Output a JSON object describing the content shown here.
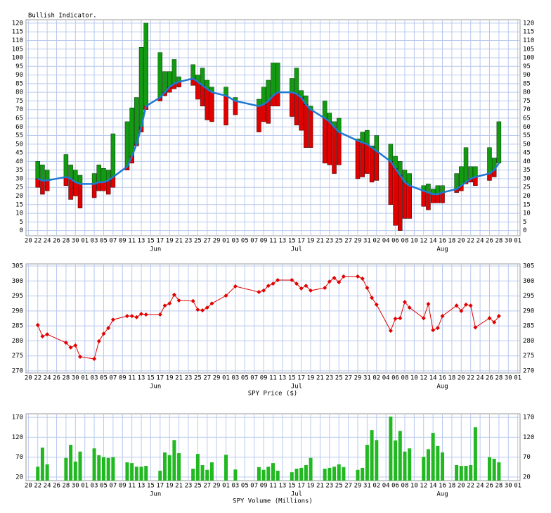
{
  "chart_data": [
    {
      "type": "range-bar",
      "title": "Bullish Indicator.",
      "x": [
        2,
        3,
        4,
        8,
        9,
        10,
        11,
        14,
        15,
        16,
        17,
        18,
        21,
        22,
        23,
        24,
        25,
        28,
        29,
        30,
        31,
        32,
        35,
        36,
        37,
        38,
        39,
        42,
        44,
        49,
        50,
        51,
        52,
        53,
        56,
        57,
        58,
        59,
        60,
        63,
        64,
        65,
        66,
        70,
        71,
        72,
        73,
        74,
        77,
        78,
        79,
        80,
        81,
        84,
        85,
        86,
        87,
        88,
        91,
        92,
        93,
        94,
        95,
        98,
        99,
        100
      ],
      "low": [
        25,
        21,
        23,
        26,
        18,
        20,
        13,
        19,
        23,
        23,
        21,
        25,
        35,
        39,
        49,
        57,
        70,
        75,
        78,
        80,
        82,
        83,
        84,
        76,
        72,
        64,
        63,
        61,
        67,
        57,
        63,
        62,
        72,
        72,
        66,
        61,
        58,
        48,
        48,
        39,
        38,
        33,
        38,
        30,
        31,
        33,
        28,
        29,
        15,
        3,
        0,
        7,
        7,
        14,
        12,
        16,
        16,
        16,
        22,
        23,
        27,
        28,
        26,
        29,
        31,
        39
      ],
      "split": [
        30,
        29,
        29,
        31,
        30,
        28,
        27,
        27,
        28,
        28,
        29,
        31,
        37,
        43,
        50,
        60,
        72,
        77,
        80,
        83,
        85,
        86,
        88,
        86,
        84,
        82,
        80,
        78,
        75,
        72,
        73,
        75,
        78,
        80,
        80,
        79,
        77,
        73,
        70,
        65,
        63,
        60,
        57,
        52,
        51,
        50,
        48,
        46,
        40,
        36,
        32,
        28,
        26,
        23,
        22,
        21,
        21,
        22,
        24,
        26,
        28,
        30,
        31,
        33,
        35,
        39
      ],
      "high": [
        40,
        38,
        35,
        44,
        38,
        35,
        32,
        33,
        38,
        36,
        35,
        56,
        63,
        71,
        77,
        106,
        120,
        103,
        92,
        92,
        99,
        89,
        96,
        90,
        94,
        87,
        83,
        83,
        77,
        76,
        83,
        87,
        97,
        97,
        88,
        94,
        81,
        78,
        72,
        75,
        68,
        63,
        65,
        53,
        57,
        58,
        49,
        55,
        50,
        43,
        40,
        35,
        33,
        26,
        27,
        24,
        26,
        26,
        33,
        37,
        48,
        37,
        37,
        48,
        42,
        63
      ],
      "colors": {
        "up": "#139a13",
        "down": "#e00000",
        "line": "#1f78d4"
      },
      "xlim": [
        -0.5,
        104.5
      ],
      "xticks": [
        {
          "value": 0,
          "label": "20"
        },
        {
          "value": 2,
          "label": "22"
        },
        {
          "value": 4,
          "label": "24"
        },
        {
          "value": 6,
          "label": "26"
        },
        {
          "value": 8,
          "label": "28"
        },
        {
          "value": 10,
          "label": "30"
        },
        {
          "value": 12,
          "label": "01"
        },
        {
          "value": 14,
          "label": "03"
        },
        {
          "value": 16,
          "label": "05"
        },
        {
          "value": 18,
          "label": "07"
        },
        {
          "value": 20,
          "label": "09"
        },
        {
          "value": 22,
          "label": "11"
        },
        {
          "value": 24,
          "label": "13"
        },
        {
          "value": 26,
          "label": "15"
        },
        {
          "value": 28,
          "label": "17"
        },
        {
          "value": 30,
          "label": "19"
        },
        {
          "value": 32,
          "label": "21"
        },
        {
          "value": 34,
          "label": "23"
        },
        {
          "value": 36,
          "label": "25"
        },
        {
          "value": 38,
          "label": "27"
        },
        {
          "value": 40,
          "label": "29"
        },
        {
          "value": 42,
          "label": "01"
        },
        {
          "value": 44,
          "label": "03"
        },
        {
          "value": 46,
          "label": "05"
        },
        {
          "value": 48,
          "label": "07"
        },
        {
          "value": 50,
          "label": "09"
        },
        {
          "value": 52,
          "label": "11"
        },
        {
          "value": 54,
          "label": "13"
        },
        {
          "value": 56,
          "label": "15"
        },
        {
          "value": 58,
          "label": "17"
        },
        {
          "value": 60,
          "label": "19"
        },
        {
          "value": 62,
          "label": "21"
        },
        {
          "value": 64,
          "label": "23"
        },
        {
          "value": 66,
          "label": "25"
        },
        {
          "value": 68,
          "label": "27"
        },
        {
          "value": 70,
          "label": "29"
        },
        {
          "value": 72,
          "label": "31"
        },
        {
          "value": 74,
          "label": "02"
        },
        {
          "value": 76,
          "label": "04"
        },
        {
          "value": 78,
          "label": "06"
        },
        {
          "value": 80,
          "label": "08"
        },
        {
          "value": 82,
          "label": "10"
        },
        {
          "value": 84,
          "label": "12"
        },
        {
          "value": 86,
          "label": "14"
        },
        {
          "value": 88,
          "label": "16"
        },
        {
          "value": 90,
          "label": "18"
        },
        {
          "value": 92,
          "label": "20"
        },
        {
          "value": 94,
          "label": "22"
        },
        {
          "value": 96,
          "label": "24"
        },
        {
          "value": 98,
          "label": "26"
        },
        {
          "value": 100,
          "label": "28"
        },
        {
          "value": 102,
          "label": "30"
        },
        {
          "value": 104,
          "label": "01"
        }
      ],
      "months": [
        {
          "value": 27,
          "label": "Jun"
        },
        {
          "value": 57,
          "label": "Jul"
        },
        {
          "value": 88,
          "label": "Aug"
        }
      ],
      "ylim": [
        -3,
        122
      ],
      "yticks": [
        0,
        5,
        10,
        15,
        20,
        25,
        30,
        35,
        40,
        45,
        50,
        55,
        60,
        65,
        70,
        75,
        80,
        85,
        90,
        95,
        100,
        105,
        110,
        115,
        120
      ],
      "grid": true
    },
    {
      "type": "line",
      "xlabel": "SPY Price ($)",
      "x": [
        2,
        3,
        4,
        8,
        9,
        10,
        11,
        14,
        15,
        16,
        17,
        18,
        21,
        22,
        23,
        24,
        25,
        28,
        29,
        30,
        31,
        32,
        35,
        36,
        37,
        38,
        39,
        42,
        44,
        49,
        50,
        51,
        52,
        53,
        56,
        57,
        58,
        59,
        60,
        63,
        64,
        65,
        66,
        67,
        70,
        71,
        72,
        73,
        74,
        77,
        78,
        79,
        80,
        81,
        84,
        85,
        86,
        87,
        88,
        91,
        92,
        93,
        94,
        95,
        98,
        99,
        100
      ],
      "values": [
        285.3,
        281.5,
        282.2,
        279.4,
        277.8,
        278.5,
        274.7,
        274.0,
        279.9,
        282.4,
        284.3,
        287.1,
        288.3,
        288.3,
        287.9,
        289.0,
        288.8,
        288.8,
        291.8,
        292.5,
        295.4,
        293.5,
        293.3,
        290.4,
        290.2,
        291.1,
        292.5,
        295.1,
        298.2,
        296.3,
        296.8,
        298.4,
        299.1,
        300.3,
        300.3,
        299.1,
        297.5,
        298.4,
        296.8,
        297.7,
        299.8,
        301.0,
        299.6,
        301.5,
        301.5,
        300.8,
        297.7,
        294.4,
        292.1,
        283.4,
        287.4,
        287.6,
        293.0,
        291.1,
        287.6,
        292.3,
        283.6,
        284.3,
        288.3,
        291.8,
        290.0,
        292.1,
        291.8,
        284.5,
        287.6,
        286.2,
        288.3
      ],
      "color": "#e00000",
      "xlim": [
        -0.5,
        104.5
      ],
      "xticks": [
        {
          "value": 0,
          "label": "20"
        },
        {
          "value": 2,
          "label": "22"
        },
        {
          "value": 4,
          "label": "24"
        },
        {
          "value": 6,
          "label": "26"
        },
        {
          "value": 8,
          "label": "28"
        },
        {
          "value": 10,
          "label": "30"
        },
        {
          "value": 12,
          "label": "01"
        },
        {
          "value": 14,
          "label": "03"
        },
        {
          "value": 16,
          "label": "05"
        },
        {
          "value": 18,
          "label": "07"
        },
        {
          "value": 20,
          "label": "09"
        },
        {
          "value": 22,
          "label": "11"
        },
        {
          "value": 24,
          "label": "13"
        },
        {
          "value": 26,
          "label": "15"
        },
        {
          "value": 28,
          "label": "17"
        },
        {
          "value": 30,
          "label": "19"
        },
        {
          "value": 32,
          "label": "21"
        },
        {
          "value": 34,
          "label": "23"
        },
        {
          "value": 36,
          "label": "25"
        },
        {
          "value": 38,
          "label": "27"
        },
        {
          "value": 40,
          "label": "29"
        },
        {
          "value": 42,
          "label": "01"
        },
        {
          "value": 44,
          "label": "03"
        },
        {
          "value": 46,
          "label": "05"
        },
        {
          "value": 48,
          "label": "07"
        },
        {
          "value": 50,
          "label": "09"
        },
        {
          "value": 52,
          "label": "11"
        },
        {
          "value": 54,
          "label": "13"
        },
        {
          "value": 56,
          "label": "15"
        },
        {
          "value": 58,
          "label": "17"
        },
        {
          "value": 60,
          "label": "19"
        },
        {
          "value": 62,
          "label": "21"
        },
        {
          "value": 64,
          "label": "23"
        },
        {
          "value": 66,
          "label": "25"
        },
        {
          "value": 68,
          "label": "27"
        },
        {
          "value": 70,
          "label": "29"
        },
        {
          "value": 72,
          "label": "31"
        },
        {
          "value": 74,
          "label": "02"
        },
        {
          "value": 76,
          "label": "04"
        },
        {
          "value": 78,
          "label": "06"
        },
        {
          "value": 80,
          "label": "08"
        },
        {
          "value": 82,
          "label": "10"
        },
        {
          "value": 84,
          "label": "12"
        },
        {
          "value": 86,
          "label": "14"
        },
        {
          "value": 88,
          "label": "16"
        },
        {
          "value": 90,
          "label": "18"
        },
        {
          "value": 92,
          "label": "20"
        },
        {
          "value": 94,
          "label": "22"
        },
        {
          "value": 96,
          "label": "24"
        },
        {
          "value": 98,
          "label": "26"
        },
        {
          "value": 100,
          "label": "28"
        },
        {
          "value": 102,
          "label": "30"
        },
        {
          "value": 104,
          "label": "01"
        }
      ],
      "months": [
        {
          "value": 27,
          "label": "Jun"
        },
        {
          "value": 57,
          "label": "Jul"
        },
        {
          "value": 88,
          "label": "Aug"
        }
      ],
      "ylim": [
        269.3,
        305.7
      ],
      "yticks": [
        270,
        275,
        280,
        285,
        290,
        295,
        300,
        305
      ],
      "grid": true
    },
    {
      "type": "bar",
      "xlabel": "SPY Volume (Millions)",
      "x": [
        2,
        3,
        4,
        8,
        9,
        10,
        11,
        14,
        15,
        16,
        17,
        18,
        21,
        22,
        23,
        24,
        25,
        28,
        29,
        30,
        31,
        32,
        35,
        36,
        37,
        38,
        39,
        42,
        44,
        49,
        50,
        51,
        52,
        53,
        56,
        57,
        58,
        59,
        60,
        63,
        64,
        65,
        66,
        67,
        70,
        71,
        72,
        73,
        74,
        77,
        78,
        79,
        80,
        81,
        84,
        85,
        86,
        87,
        88,
        91,
        92,
        93,
        94,
        95,
        98,
        99,
        100
      ],
      "values": [
        46,
        94,
        52,
        68,
        101,
        59,
        84,
        92,
        75,
        70,
        68,
        70,
        57,
        55,
        46,
        46,
        48,
        36,
        82,
        75,
        113,
        80,
        41,
        78,
        50,
        38,
        57,
        76,
        39,
        45,
        38,
        46,
        55,
        36,
        32,
        41,
        43,
        50,
        68,
        41,
        43,
        46,
        52,
        45,
        38,
        43,
        101,
        138,
        113,
        172,
        112,
        136,
        84,
        92,
        71,
        90,
        131,
        98,
        82,
        50,
        48,
        48,
        50,
        145,
        70,
        66,
        57
      ],
      "color": "#22b822",
      "xlim": [
        -0.5,
        104.5
      ],
      "xticks": [
        {
          "value": 0,
          "label": "20"
        },
        {
          "value": 2,
          "label": "22"
        },
        {
          "value": 4,
          "label": "24"
        },
        {
          "value": 6,
          "label": "26"
        },
        {
          "value": 8,
          "label": "28"
        },
        {
          "value": 10,
          "label": "30"
        },
        {
          "value": 12,
          "label": "01"
        },
        {
          "value": 14,
          "label": "03"
        },
        {
          "value": 16,
          "label": "05"
        },
        {
          "value": 18,
          "label": "07"
        },
        {
          "value": 20,
          "label": "09"
        },
        {
          "value": 22,
          "label": "11"
        },
        {
          "value": 24,
          "label": "13"
        },
        {
          "value": 26,
          "label": "15"
        },
        {
          "value": 28,
          "label": "17"
        },
        {
          "value": 30,
          "label": "19"
        },
        {
          "value": 32,
          "label": "21"
        },
        {
          "value": 34,
          "label": "23"
        },
        {
          "value": 36,
          "label": "25"
        },
        {
          "value": 38,
          "label": "27"
        },
        {
          "value": 40,
          "label": "29"
        },
        {
          "value": 42,
          "label": "01"
        },
        {
          "value": 44,
          "label": "03"
        },
        {
          "value": 46,
          "label": "05"
        },
        {
          "value": 48,
          "label": "07"
        },
        {
          "value": 50,
          "label": "09"
        },
        {
          "value": 52,
          "label": "11"
        },
        {
          "value": 54,
          "label": "13"
        },
        {
          "value": 56,
          "label": "15"
        },
        {
          "value": 58,
          "label": "17"
        },
        {
          "value": 60,
          "label": "19"
        },
        {
          "value": 62,
          "label": "21"
        },
        {
          "value": 64,
          "label": "23"
        },
        {
          "value": 66,
          "label": "25"
        },
        {
          "value": 68,
          "label": "27"
        },
        {
          "value": 70,
          "label": "29"
        },
        {
          "value": 72,
          "label": "31"
        },
        {
          "value": 74,
          "label": "02"
        },
        {
          "value": 76,
          "label": "04"
        },
        {
          "value": 78,
          "label": "06"
        },
        {
          "value": 80,
          "label": "08"
        },
        {
          "value": 82,
          "label": "10"
        },
        {
          "value": 84,
          "label": "12"
        },
        {
          "value": 86,
          "label": "14"
        },
        {
          "value": 88,
          "label": "16"
        },
        {
          "value": 90,
          "label": "18"
        },
        {
          "value": 92,
          "label": "20"
        },
        {
          "value": 94,
          "label": "22"
        },
        {
          "value": 96,
          "label": "24"
        },
        {
          "value": 98,
          "label": "26"
        },
        {
          "value": 100,
          "label": "28"
        },
        {
          "value": 102,
          "label": "30"
        },
        {
          "value": 104,
          "label": "01"
        }
      ],
      "months": [
        {
          "value": 27,
          "label": "Jun"
        },
        {
          "value": 57,
          "label": "Jul"
        },
        {
          "value": 88,
          "label": "Aug"
        }
      ],
      "ylim": [
        11,
        179
      ],
      "yticks": [
        20,
        70,
        120,
        170
      ],
      "grid": true
    }
  ]
}
